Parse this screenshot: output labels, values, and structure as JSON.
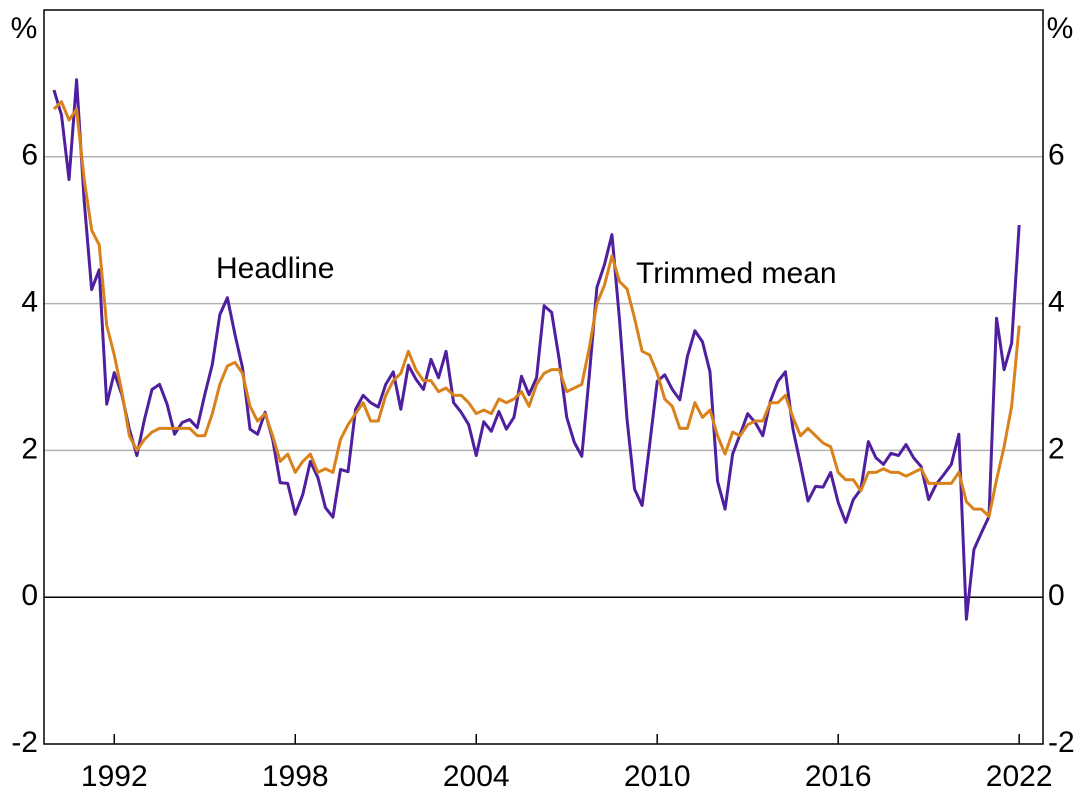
{
  "chart_data": {
    "type": "line",
    "ylabel": "%",
    "annotations": [
      {
        "text": "Headline"
      },
      {
        "text": "Trimmed mean"
      }
    ],
    "x": [
      1990,
      1990.25,
      1990.5,
      1990.75,
      1991,
      1991.25,
      1991.5,
      1991.75,
      1992,
      1992.25,
      1992.5,
      1992.75,
      1993,
      1993.25,
      1993.5,
      1993.75,
      1994,
      1994.25,
      1994.5,
      1994.75,
      1995,
      1995.25,
      1995.5,
      1995.75,
      1996,
      1996.25,
      1996.5,
      1996.75,
      1997,
      1997.25,
      1997.5,
      1997.75,
      1998,
      1998.25,
      1998.5,
      1998.75,
      1999,
      1999.25,
      1999.5,
      1999.75,
      2000,
      2000.25,
      2000.5,
      2000.75,
      2001,
      2001.25,
      2001.5,
      2001.75,
      2002,
      2002.25,
      2002.5,
      2002.75,
      2003,
      2003.25,
      2003.5,
      2003.75,
      2004,
      2004.25,
      2004.5,
      2004.75,
      2005,
      2005.25,
      2005.5,
      2005.75,
      2006,
      2006.25,
      2006.5,
      2006.75,
      2007,
      2007.25,
      2007.5,
      2007.75,
      2008,
      2008.25,
      2008.5,
      2008.75,
      2009,
      2009.25,
      2009.5,
      2009.75,
      2010,
      2010.25,
      2010.5,
      2010.75,
      2011,
      2011.25,
      2011.5,
      2011.75,
      2012,
      2012.25,
      2012.5,
      2012.75,
      2013,
      2013.25,
      2013.5,
      2013.75,
      2014,
      2014.25,
      2014.5,
      2014.75,
      2015,
      2015.25,
      2015.5,
      2015.75,
      2016,
      2016.25,
      2016.5,
      2016.75,
      2017,
      2017.25,
      2017.5,
      2017.75,
      2018,
      2018.25,
      2018.5,
      2018.75,
      2019,
      2019.25,
      2019.5,
      2019.75,
      2020,
      2020.25,
      2020.5,
      2020.75,
      2021,
      2021.25,
      2021.5,
      2021.75,
      2022
    ],
    "series": [
      {
        "name": "Headline",
        "color": "#4f1f9f",
        "values": [
          6.91,
          6.57,
          5.69,
          7.05,
          5.41,
          4.19,
          4.46,
          2.63,
          3.06,
          2.76,
          2.29,
          1.93,
          2.42,
          2.83,
          2.9,
          2.63,
          2.22,
          2.38,
          2.42,
          2.31,
          2.76,
          3.17,
          3.85,
          4.08,
          3.58,
          3.13,
          2.29,
          2.22,
          2.52,
          2.15,
          1.56,
          1.55,
          1.13,
          1.4,
          1.85,
          1.63,
          1.22,
          1.09,
          1.74,
          1.71,
          2.56,
          2.75,
          2.65,
          2.59,
          2.9,
          3.07,
          2.56,
          3.16,
          2.97,
          2.83,
          3.24,
          2.99,
          3.35,
          2.65,
          2.52,
          2.35,
          1.93,
          2.39,
          2.26,
          2.53,
          2.29,
          2.45,
          3.01,
          2.76,
          2.99,
          3.97,
          3.88,
          3.24,
          2.45,
          2.11,
          1.92,
          3.03,
          4.22,
          4.53,
          4.94,
          3.78,
          2.42,
          1.47,
          1.25,
          2.08,
          2.94,
          3.03,
          2.83,
          2.69,
          3.28,
          3.63,
          3.48,
          3.07,
          1.58,
          1.2,
          1.95,
          2.22,
          2.5,
          2.38,
          2.2,
          2.67,
          2.94,
          3.07,
          2.29,
          1.81,
          1.31,
          1.51,
          1.5,
          1.7,
          1.29,
          1.02,
          1.33,
          1.47,
          2.12,
          1.9,
          1.81,
          1.96,
          1.93,
          2.08,
          1.9,
          1.78,
          1.33,
          1.54,
          1.67,
          1.81,
          2.22,
          -0.3,
          0.65,
          0.88,
          1.1,
          3.8,
          3.1,
          3.46,
          5.07
        ]
      },
      {
        "name": "Trimmed mean",
        "color": "#d9821c",
        "values": [
          6.65,
          6.75,
          6.5,
          6.65,
          5.7,
          5.0,
          4.8,
          3.7,
          3.3,
          2.8,
          2.2,
          2.0,
          2.15,
          2.25,
          2.3,
          2.3,
          2.3,
          2.3,
          2.3,
          2.2,
          2.2,
          2.5,
          2.9,
          3.15,
          3.2,
          3.05,
          2.6,
          2.4,
          2.5,
          2.2,
          1.85,
          1.95,
          1.7,
          1.85,
          1.95,
          1.7,
          1.75,
          1.7,
          2.15,
          2.35,
          2.5,
          2.65,
          2.4,
          2.4,
          2.75,
          2.95,
          3.05,
          3.35,
          3.1,
          2.95,
          2.95,
          2.8,
          2.85,
          2.75,
          2.75,
          2.65,
          2.5,
          2.55,
          2.5,
          2.7,
          2.65,
          2.7,
          2.8,
          2.6,
          2.9,
          3.05,
          3.1,
          3.1,
          2.8,
          2.85,
          2.9,
          3.4,
          4.0,
          4.25,
          4.65,
          4.3,
          4.2,
          3.8,
          3.35,
          3.3,
          3.05,
          2.7,
          2.6,
          2.3,
          2.3,
          2.65,
          2.45,
          2.55,
          2.2,
          1.95,
          2.25,
          2.2,
          2.35,
          2.4,
          2.4,
          2.65,
          2.65,
          2.75,
          2.45,
          2.2,
          2.3,
          2.2,
          2.1,
          2.05,
          1.7,
          1.6,
          1.6,
          1.45,
          1.7,
          1.7,
          1.75,
          1.7,
          1.7,
          1.65,
          1.7,
          1.75,
          1.55,
          1.55,
          1.55,
          1.55,
          1.7,
          1.3,
          1.2,
          1.2,
          1.1,
          1.6,
          2.05,
          2.6,
          3.7
        ]
      }
    ],
    "xlim": [
      1989.67,
      2022.79
    ],
    "xticks": [
      1992,
      1998,
      2004,
      2010,
      2016,
      2022
    ],
    "ylim": [
      -2,
      8
    ],
    "yticks": [
      -2,
      0,
      2,
      4,
      6
    ],
    "grid": true
  }
}
